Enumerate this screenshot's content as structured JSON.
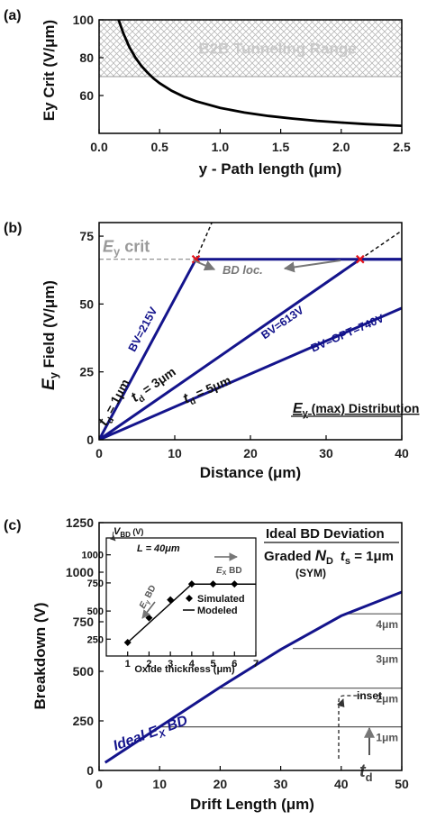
{
  "chart_data": [
    {
      "panel": "(a)",
      "type": "line",
      "xlabel": "y - Path length (μm)",
      "ylabel": "Ey Crit (V/μm)",
      "xlim": [
        0,
        2.5
      ],
      "ylim": [
        40,
        100
      ],
      "xticks": [
        "0.0",
        "0.5",
        "1.0",
        "1.5",
        "2.0",
        "2.5"
      ],
      "yticks": [
        "60",
        "80",
        "100"
      ],
      "series": [
        {
          "x": [
            0.15,
            0.2,
            0.25,
            0.3,
            0.35,
            0.4,
            0.45,
            0.5,
            0.6,
            0.7,
            0.8,
            1.0,
            1.2,
            1.4,
            1.6,
            1.8,
            2.0,
            2.2,
            2.4,
            2.5
          ],
          "y": [
            102,
            92.9,
            85.6,
            80.0,
            75.6,
            72.1,
            69.0,
            66.5,
            62.5,
            59.4,
            57.0,
            53.5,
            51.0,
            49.2,
            47.8,
            46.6,
            45.7,
            44.9,
            44.3,
            44.0
          ]
        }
      ],
      "shaded_region": {
        "y_from": 70,
        "y_to": 100,
        "label": "B2B Tunneling Range"
      }
    },
    {
      "panel": "(b)",
      "type": "line",
      "xlabel": "Distance (μm)",
      "ylabel_main": "E",
      "ylabel_sub": "y",
      "ylabel_rest": " Field (V/μm)",
      "xlim": [
        0,
        40
      ],
      "ylim": [
        0,
        80
      ],
      "xticks": [
        "0",
        "10",
        "20",
        "30",
        "40"
      ],
      "yticks": [
        "0",
        "25",
        "50",
        "75"
      ],
      "critical_field": {
        "value": 66.5,
        "label_main": "E",
        "label_sub": "y",
        "label_rest": " crit"
      },
      "series": [
        {
          "points": [
            [
              0,
              0
            ],
            [
              12.8,
              66.5
            ],
            [
              40,
              66.5
            ]
          ],
          "label": "BV=215V",
          "td_label_main": "t",
          "td_label_sub": "d",
          "td_label_rest": " = 1μm"
        },
        {
          "points": [
            [
              0,
              0
            ],
            [
              34.5,
              66.5
            ],
            [
              40,
              66.5
            ]
          ],
          "label": "BV=613V",
          "td_label_main": "t",
          "td_label_sub": "d",
          "td_label_rest": " = 3μm"
        },
        {
          "points": [
            [
              0,
              0
            ],
            [
              40,
              48.5
            ]
          ],
          "label": "BV=OPT=740V",
          "td_label_main": "t",
          "td_label_sub": "d",
          "td_label_rest": " = 5μm"
        }
      ],
      "extensions": [
        {
          "points": [
            [
              12.8,
              66.5
            ],
            [
              14.9,
              80
            ]
          ]
        },
        {
          "points": [
            [
              34.5,
              66.5
            ],
            [
              40,
              77
            ]
          ]
        }
      ],
      "breakdown_points": [
        [
          12.8,
          66.5
        ],
        [
          34.5,
          66.5
        ]
      ],
      "bd_label": "BD loc.",
      "title_main": "E",
      "title_sub": "y",
      "title_rest": " (max) Distribution"
    },
    {
      "panel": "(c)",
      "type": "line",
      "xlabel": "Drift Length (μm)",
      "ylabel": "Breakdown (V)",
      "xlim": [
        0,
        50
      ],
      "ylim": [
        0,
        1250
      ],
      "xticks": [
        "0",
        "10",
        "20",
        "30",
        "40",
        "50"
      ],
      "yticks": [
        "0",
        "250",
        "500",
        "750",
        "1000",
        "1250"
      ],
      "ideal_line": {
        "x": [
          1,
          10,
          20,
          30,
          40,
          50
        ],
        "y": [
          40,
          220,
          420,
          610,
          780,
          900
        ],
        "label_pre": "Ideal ",
        "label_main": "E",
        "label_sub": "X",
        "label_post": " BD"
      },
      "plateaus": [
        {
          "y": 220,
          "x_from": 10,
          "label": "1μm"
        },
        {
          "y": 415,
          "x_from": 20,
          "label": "2μm"
        },
        {
          "y": 615,
          "x_from": 32,
          "label": "3μm"
        },
        {
          "y": 790,
          "x_from": 41,
          "label": "4μm"
        }
      ],
      "title1": "Ideal BD Deviation",
      "title2_pre": "Graded ",
      "title2_main": "N",
      "title2_sub": "D",
      "title2_t": "t",
      "title2_tsub": "s",
      "title2_post": " = 1μm",
      "title3": "(SYM)",
      "inset_label": "inset",
      "td_arrow_main": "t",
      "td_arrow_sub": "d",
      "inset": {
        "xlabel": "Oxide thickness (μm)",
        "ylabel_main": "V",
        "ylabel_sub": "BD",
        "ylabel_rest": " (V)",
        "xlim": [
          0,
          7
        ],
        "ylim": [
          100,
          1150
        ],
        "xticks": [
          "1",
          "2",
          "3",
          "4",
          "5",
          "6",
          "7"
        ],
        "yticks": [
          "250",
          "500",
          "750",
          "1000"
        ],
        "L_label": "L = 40μm",
        "simulated": {
          "x": [
            1,
            2,
            3,
            4,
            5,
            6
          ],
          "y": [
            220,
            440,
            600,
            740,
            740,
            740
          ]
        },
        "modeled": {
          "x": [
            1,
            4,
            7
          ],
          "y": [
            220,
            740,
            740
          ]
        },
        "legend": [
          "Simulated",
          "Modeled"
        ],
        "ey_arrow_main": "E",
        "ey_arrow_sub": "y",
        "ey_arrow_rest": " BD",
        "ex_arrow_main": "E",
        "ex_arrow_sub": "X",
        "ex_arrow_rest": " BD"
      }
    }
  ]
}
